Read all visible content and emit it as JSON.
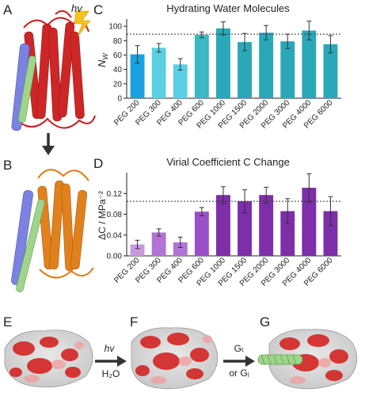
{
  "panels": {
    "a": "A",
    "b": "B",
    "c": "C",
    "d": "D",
    "e": "E",
    "f": "F",
    "g": "G"
  },
  "hv_label": "hv",
  "hv_label_f": "hv",
  "h2o_label": "H₂O",
  "gt_label": "Gₜ",
  "or_gi_label": "or Gᵢ",
  "chart_data": [
    {
      "type": "bar",
      "title": "Hydrating Water Molecules",
      "ylabel": "Nᵂ",
      "ylabel_main": "N",
      "ylabel_sub": "W",
      "xlabel": "",
      "categories": [
        "PEG 200",
        "PEG 300",
        "PEG 400",
        "PEG 600",
        "PEG 1000",
        "PEG 1500",
        "PEG 2000",
        "PEG 3000",
        "PEG 4000",
        "PEG 6000"
      ],
      "values": [
        61,
        70,
        47,
        88,
        97,
        78,
        91,
        79,
        94,
        75
      ],
      "errors": [
        12,
        6,
        8,
        4,
        9,
        12,
        10,
        10,
        13,
        12
      ],
      "colors": [
        "#1aa2e0",
        "#5ccfe2",
        "#5ccfe2",
        "#3ab8c4",
        "#2aa8b8",
        "#2aa8b8",
        "#2aa8b8",
        "#2aa8b8",
        "#2aa8b8",
        "#2aa8b8"
      ],
      "ylim": [
        0,
        110
      ],
      "yticks": [
        "0",
        "20",
        "40",
        "60",
        "80",
        "100"
      ],
      "reference_line": 89,
      "grid": false
    },
    {
      "type": "bar",
      "title": "Virial Coefficient C Change",
      "ylabel": "ΔC / MPa⁻²",
      "xlabel": "",
      "categories": [
        "PEG 200",
        "PEG 300",
        "PEG 400",
        "PEG 600",
        "PEG 1000",
        "PEG 1500",
        "PEG 2000",
        "PEG 3000",
        "PEG 4000",
        "PEG 6000"
      ],
      "values": [
        0.022,
        0.045,
        0.026,
        0.085,
        0.117,
        0.105,
        0.117,
        0.086,
        0.131,
        0.086
      ],
      "errors": [
        0.008,
        0.007,
        0.01,
        0.008,
        0.016,
        0.022,
        0.015,
        0.024,
        0.027,
        0.028
      ],
      "colors": [
        "#c79ae0",
        "#b074d6",
        "#b074d6",
        "#9a4fc8",
        "#7d2ea8",
        "#7d2ea8",
        "#7d2ea8",
        "#7d2ea8",
        "#7d2ea8",
        "#7d2ea8"
      ],
      "ylim": [
        0,
        0.16
      ],
      "yticks": [
        "0.00",
        "0.04",
        "0.08",
        "0.12"
      ],
      "reference_line": 0.105,
      "grid": false
    }
  ],
  "illustrations": {
    "a": "rhodopsin-structure-red",
    "b": "rhodopsin-structure-orange",
    "e": "surface-rendering",
    "f": "surface-rendering",
    "g": "surface-rendering-with-helix"
  },
  "colors": {
    "red_helix": "#cc1b1b",
    "orange_helix": "#e07b12",
    "blue_helix": "#7b82e0",
    "green_helix": "#9fd48c",
    "lightning": "#f6c21c"
  }
}
